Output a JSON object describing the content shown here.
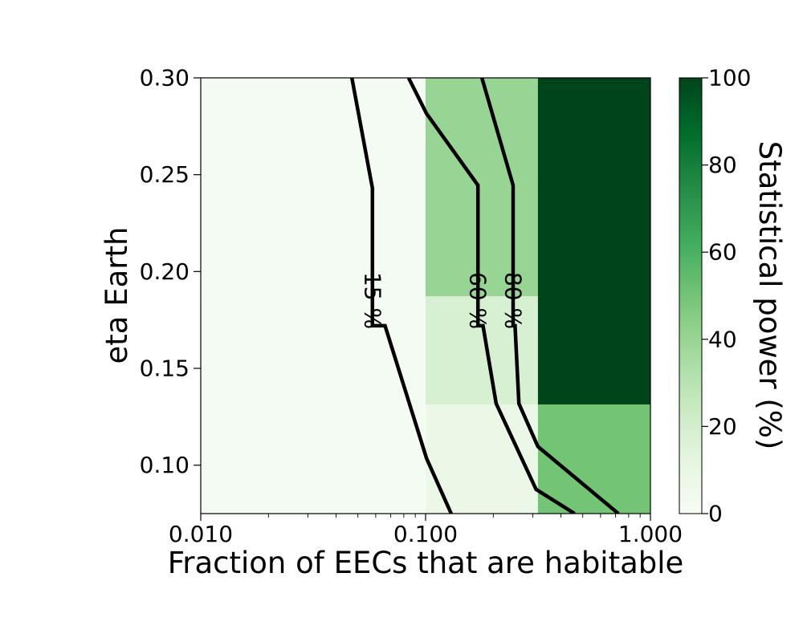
{
  "chart_data": {
    "type": "heatmap",
    "title": "",
    "xlabel": "Fraction of EECs that are habitable",
    "ylabel": "eta Earth",
    "colorbar_label": "Statistical power (%)",
    "x_scale": "log",
    "xlim": [
      0.01,
      1.0
    ],
    "ylim": [
      0.075,
      0.3
    ],
    "x_ticks": [
      "0.010",
      "0.100",
      "1.000"
    ],
    "y_ticks": [
      "0.10",
      "0.15",
      "0.20",
      "0.25",
      "0.30"
    ],
    "colorbar_range": [
      0,
      100
    ],
    "colorbar_ticks": [
      "0",
      "20",
      "40",
      "60",
      "80",
      "100"
    ],
    "colormap": [
      "#f7fcf5",
      "#e5f5e0",
      "#c7e9c0",
      "#a1d99b",
      "#74c476",
      "#41ab5d",
      "#238b45",
      "#006d2c",
      "#00441b"
    ],
    "x_cells": [
      0.01,
      0.1,
      0.316,
      1.0
    ],
    "y_cells": [
      0.075,
      0.1316,
      0.1875,
      0.3
    ],
    "cell_values": [
      [
        2,
        8,
        50
      ],
      [
        2,
        18,
        100
      ],
      [
        2,
        40,
        100
      ]
    ],
    "contours": [
      {
        "label": "15 %",
        "label_at": [
          0.058,
          0.185
        ],
        "points": [
          [
            0.13,
            0.075
          ],
          [
            0.101,
            0.1035
          ],
          [
            0.066,
            0.172
          ],
          [
            0.058,
            0.172
          ],
          [
            0.058,
            0.243
          ],
          [
            0.047,
            0.3
          ]
        ]
      },
      {
        "label": "60 %",
        "label_at": [
          0.171,
          0.185
        ],
        "points": [
          [
            0.46,
            0.075
          ],
          [
            0.31,
            0.0875
          ],
          [
            0.206,
            0.1318
          ],
          [
            0.18,
            0.172
          ],
          [
            0.171,
            0.172
          ],
          [
            0.171,
            0.2445
          ],
          [
            0.101,
            0.2815
          ],
          [
            0.084,
            0.3
          ]
        ]
      },
      {
        "label": "80 %",
        "label_at": [
          0.245,
          0.185
        ],
        "points": [
          [
            0.72,
            0.075
          ],
          [
            0.316,
            0.1096
          ],
          [
            0.26,
            0.1318
          ],
          [
            0.25,
            0.172
          ],
          [
            0.245,
            0.172
          ],
          [
            0.245,
            0.2445
          ],
          [
            0.178,
            0.3
          ]
        ]
      }
    ]
  }
}
